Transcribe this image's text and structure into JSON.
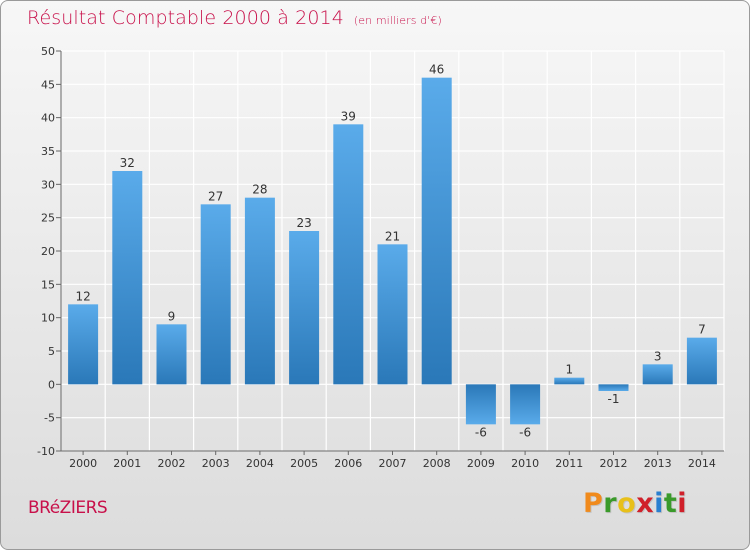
{
  "header": {
    "title": "Résultat Comptable 2000 à 2014",
    "subtitle": "(en milliers d'€)"
  },
  "footer": {
    "commune": "BRéZIERS",
    "brand_letters": [
      "P",
      "r",
      "o",
      "x",
      "i",
      "t",
      "i"
    ],
    "brand_colors": [
      "#f08a1c",
      "#3a9a2a",
      "#e8c01a",
      "#d0202a",
      "#2a7fd0",
      "#3a9a2a",
      "#d0202a"
    ]
  },
  "colors": {
    "bar_top": "#5aabea",
    "bar_bottom": "#2a78b8",
    "grid": "#ffffff",
    "title": "#c8104a"
  },
  "chart_data": {
    "type": "bar",
    "title": "Résultat Comptable 2000 à 2014",
    "subtitle": "(en milliers d'€)",
    "xlabel": "",
    "ylabel": "",
    "ylim": [
      -10,
      50
    ],
    "y_ticks": [
      -10,
      -5,
      0,
      5,
      10,
      15,
      20,
      25,
      30,
      35,
      40,
      45,
      50
    ],
    "grid": true,
    "categories": [
      "2000",
      "2001",
      "2002",
      "2003",
      "2004",
      "2005",
      "2006",
      "2007",
      "2008",
      "2009",
      "2010",
      "2011",
      "2012",
      "2013",
      "2014"
    ],
    "values": [
      12,
      32,
      9,
      27,
      28,
      23,
      39,
      21,
      46,
      -6,
      -6,
      1,
      -1,
      3,
      7
    ]
  }
}
